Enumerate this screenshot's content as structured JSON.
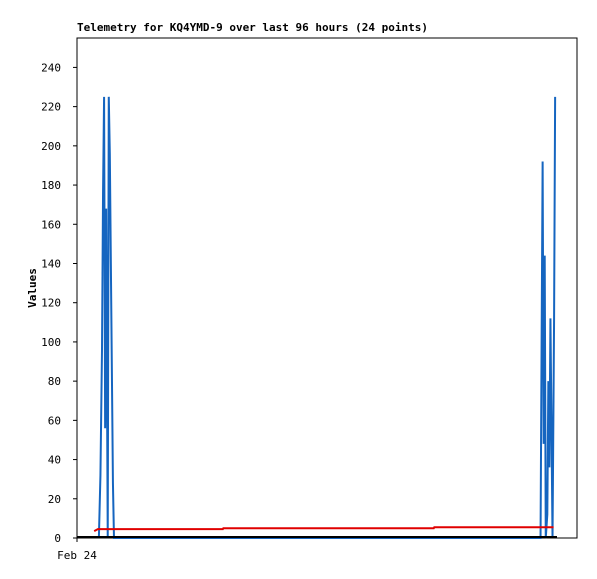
{
  "chart_data": {
    "type": "line",
    "title": "Telemetry for KQ4YMD-9 over last 96 hours (24 points)",
    "y_label": "Values",
    "xlim": [
      0,
      96
    ],
    "xticks": [
      {
        "value": 0,
        "label": "Feb 24"
      }
    ],
    "ylim": [
      0,
      255
    ],
    "yticks": [
      0,
      20,
      40,
      60,
      80,
      100,
      120,
      140,
      160,
      180,
      200,
      220,
      240
    ],
    "series": [
      {
        "color": "#1565c0",
        "x": [
          4.2,
          4.5,
          4.8,
          5.0,
          5.2,
          5.4,
          5.6,
          5.9,
          6.1,
          6.3,
          6.5,
          6.7,
          6.9,
          7.1,
          89.0,
          89.2,
          89.4,
          89.6,
          89.8,
          90.0,
          90.3,
          90.5,
          90.7,
          90.9,
          91.1,
          91.3,
          91.6,
          91.8
        ],
        "values": [
          0,
          32,
          96,
          176,
          225,
          56,
          168,
          0,
          225,
          196,
          140,
          84,
          28,
          0,
          0,
          97,
          192,
          48,
          144,
          0,
          12,
          80,
          36,
          112,
          56,
          0,
          112,
          225
        ]
      },
      {
        "color": "#e00000",
        "x": [
          3.3,
          4.0,
          28.0,
          28.1,
          68.5,
          68.6,
          91.5
        ],
        "values": [
          3.5,
          4.5,
          4.5,
          5,
          5,
          5.5,
          5.5
        ]
      }
    ]
  }
}
